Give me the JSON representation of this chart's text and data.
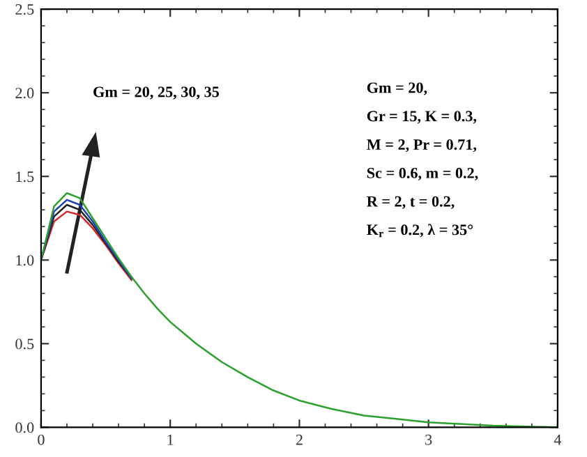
{
  "chart_data": {
    "type": "line",
    "x": [
      0,
      0.1,
      0.2,
      0.3,
      0.4,
      0.5,
      0.6,
      0.7,
      0.8,
      0.9,
      1.0,
      1.2,
      1.4,
      1.6,
      1.8,
      2.0,
      2.25,
      2.5,
      2.75,
      3.0,
      3.5,
      4.0
    ],
    "series": [
      {
        "color": "#d62728",
        "values": [
          1.0,
          1.23,
          1.29,
          1.27,
          1.19,
          1.09,
          0.98,
          0.88,
          null,
          null,
          null,
          null,
          null,
          null,
          null,
          null,
          null,
          null,
          null,
          null,
          null,
          null
        ]
      },
      {
        "color": "#222222",
        "values": [
          1.0,
          1.26,
          1.33,
          1.3,
          1.21,
          1.1,
          0.99,
          0.89,
          null,
          null,
          null,
          null,
          null,
          null,
          null,
          null,
          null,
          null,
          null,
          null,
          null,
          null
        ]
      },
      {
        "color": "#1f3fbf",
        "values": [
          1.0,
          1.29,
          1.36,
          1.33,
          1.23,
          1.11,
          1.0,
          0.89,
          null,
          null,
          null,
          null,
          null,
          null,
          null,
          null,
          null,
          null,
          null,
          null,
          null,
          null
        ]
      },
      {
        "color": "#2ca02c",
        "values": [
          1.0,
          1.32,
          1.4,
          1.37,
          1.25,
          1.13,
          1.01,
          0.9,
          0.8,
          0.71,
          0.63,
          0.5,
          0.39,
          0.3,
          0.22,
          0.16,
          0.11,
          0.07,
          0.05,
          0.03,
          0.01,
          0.0
        ]
      }
    ],
    "xlim": [
      0,
      4
    ],
    "xticks": [
      0,
      1,
      2,
      3,
      4
    ],
    "ylim": [
      0,
      2.5
    ],
    "yticks": [
      {
        "value": 0,
        "label": "0.0"
      },
      {
        "value": 0.5,
        "label": "0.5"
      },
      {
        "value": 1.0,
        "label": "1.0"
      },
      {
        "value": 1.5,
        "label": "1.5"
      },
      {
        "value": 2.0,
        "label": "2.0"
      },
      {
        "value": 2.5,
        "label": "2.5"
      }
    ],
    "grid": false,
    "marker": "none",
    "line_style": "solid",
    "annotations": [
      "Gm = 20, 25, 30, 35",
      "Gm = 20,",
      "Gr = 15, K = 0.3,",
      "M = 2, Pr = 0.71,",
      "Sc = 0.6, m = 0.2,",
      "R = 2, t = 0.2,",
      "K$_{r}$ = 0.2, λ = 35°"
    ]
  }
}
